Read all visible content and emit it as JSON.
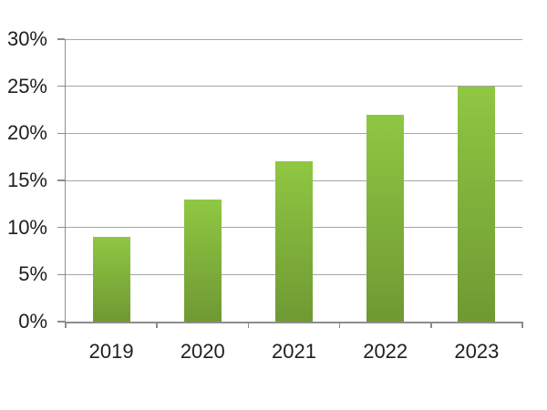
{
  "chart_data": {
    "type": "bar",
    "title": "",
    "xlabel": "",
    "ylabel": "",
    "categories": [
      "2019",
      "2020",
      "2021",
      "2022",
      "2023"
    ],
    "values": [
      9,
      13,
      17,
      22,
      25
    ],
    "ylim": [
      0,
      30
    ],
    "ytick_step": 5,
    "y_tick_labels": [
      "0%",
      "5%",
      "10%",
      "15%",
      "20%",
      "25%",
      "30%"
    ],
    "grid": true,
    "legend_position": "none",
    "colors": {
      "bar_gradient_top": "#8FC742",
      "bar_gradient_bottom": "#6F9933",
      "gridline": "#A6A6A6",
      "axis": "#8C8C8C",
      "text": "#1F1F1F",
      "background": "#FFFFFF"
    }
  }
}
